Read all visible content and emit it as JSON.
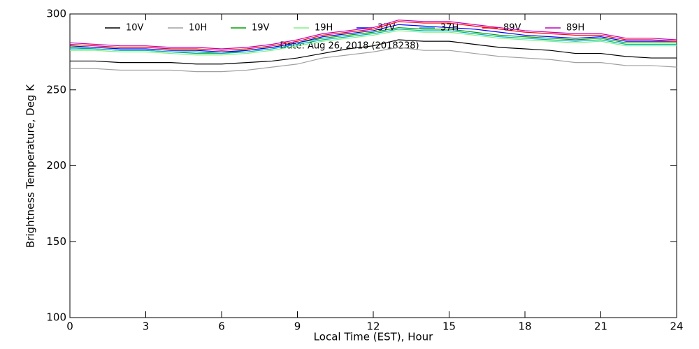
{
  "chart_data": {
    "type": "line",
    "annotation": "Date: Aug 26, 2018 (2018238)",
    "x_label": "Local Time (EST), Hour",
    "y_label": "Brightness Temperature, Deg K",
    "x": [
      0,
      1,
      2,
      3,
      4,
      5,
      6,
      7,
      8,
      9,
      10,
      11,
      12,
      13,
      14,
      15,
      16,
      17,
      18,
      19,
      20,
      21,
      22,
      23,
      24
    ],
    "series": [
      {
        "name": "10V",
        "color": "#000000",
        "values": [
          269,
          269,
          268,
          268,
          268,
          267,
          267,
          268,
          269,
          271,
          274,
          277,
          279,
          283,
          282,
          282,
          280,
          278,
          277,
          276,
          274,
          274,
          272,
          271,
          271
        ]
      },
      {
        "name": "10H",
        "color": "#a0a0a0",
        "values": [
          264,
          264,
          263,
          263,
          263,
          262,
          262,
          263,
          265,
          267,
          271,
          273,
          275,
          278,
          276,
          276,
          274,
          272,
          271,
          270,
          268,
          268,
          266,
          266,
          265
        ]
      },
      {
        "name": "19V",
        "color": "#00a000",
        "values": [
          278,
          277,
          276,
          276,
          275,
          275,
          274,
          276,
          278,
          281,
          284,
          286,
          288,
          291,
          290,
          290,
          288,
          286,
          285,
          284,
          283,
          284,
          281,
          281,
          281
        ]
      },
      {
        "name": "19H",
        "color": "#80f080",
        "values": [
          276,
          276,
          275,
          275,
          274,
          273,
          273,
          274,
          276,
          279,
          282,
          284,
          286,
          289,
          288,
          288,
          286,
          284,
          283,
          282,
          281,
          282,
          279,
          279,
          279
        ]
      },
      {
        "name": "37V",
        "color": "#0000ff",
        "values": [
          279,
          278,
          277,
          277,
          276,
          276,
          275,
          276,
          278,
          281,
          285,
          287,
          289,
          293,
          292,
          291,
          290,
          288,
          286,
          285,
          284,
          285,
          282,
          282,
          282
        ]
      },
      {
        "name": "37H",
        "color": "#00b0c0",
        "values": [
          277,
          277,
          276,
          276,
          275,
          274,
          274,
          275,
          277,
          280,
          283,
          285,
          287,
          290,
          289,
          289,
          287,
          285,
          284,
          283,
          282,
          283,
          280,
          280,
          280
        ]
      },
      {
        "name": "89V",
        "color": "#ff0000",
        "values": [
          280,
          279,
          278,
          278,
          277,
          277,
          276,
          277,
          279,
          282,
          286,
          288,
          290,
          295,
          294,
          294,
          292,
          290,
          288,
          287,
          286,
          286,
          283,
          283,
          282
        ]
      },
      {
        "name": "89H",
        "color": "#c000c0",
        "values": [
          281,
          280,
          279,
          279,
          278,
          278,
          277,
          278,
          280,
          283,
          287,
          289,
          291,
          296,
          295,
          295,
          293,
          291,
          289,
          288,
          287,
          287,
          284,
          284,
          283
        ]
      }
    ],
    "xlim": [
      0,
      24
    ],
    "xticks": [
      0,
      3,
      6,
      9,
      12,
      15,
      18,
      21,
      24
    ],
    "ylim": [
      100,
      300
    ],
    "yticks": [
      100,
      150,
      200,
      250,
      300
    ]
  }
}
